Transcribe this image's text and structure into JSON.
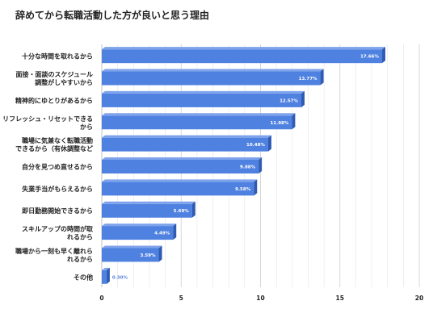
{
  "chart_data": {
    "type": "bar",
    "orientation": "horizontal",
    "title": "辞めてから転職活動した方が良いと思う理由",
    "categories": [
      [
        "十分な時間を取れるから"
      ],
      [
        "面接・面談のスケジュール",
        "調整がしやすいから"
      ],
      [
        "精神的にゆとりがあるから"
      ],
      [
        "リフレッシュ・リセットできる",
        "から"
      ],
      [
        "職場に気兼なく転職活動",
        "できるから（有休調整など"
      ],
      [
        "自分を見つめ直せるから"
      ],
      [
        "失業手当がもらえるから"
      ],
      [
        "即日勤務開始できるから"
      ],
      [
        "スキルアップの時間が取",
        "れるから"
      ],
      [
        "職場から一刻も早く離れら",
        "れるから"
      ],
      [
        "その他"
      ]
    ],
    "values": [
      17.66,
      13.77,
      12.57,
      11.98,
      10.48,
      9.88,
      9.58,
      5.69,
      4.49,
      3.59,
      0.3
    ],
    "value_labels": [
      "17.66%",
      "13.77%",
      "12.57%",
      "11.98%",
      "10.48%",
      "9.88%",
      "9.58%",
      "5.69%",
      "4.49%",
      "3.59%",
      "0.30%"
    ],
    "xlim": [
      0,
      20
    ],
    "xticks": [
      "0",
      "5",
      "10",
      "15",
      "20"
    ],
    "xlabel": "",
    "ylabel": "",
    "grid": true,
    "legend": "none",
    "colors": {
      "bar_front": "#4f81e0",
      "bar_top": "#7ea3ec",
      "bar_side": "#2f5bb4",
      "grid": "#e4e4e4",
      "value_text": "#ffffff",
      "outside_value_text": "#5a82d8"
    }
  }
}
